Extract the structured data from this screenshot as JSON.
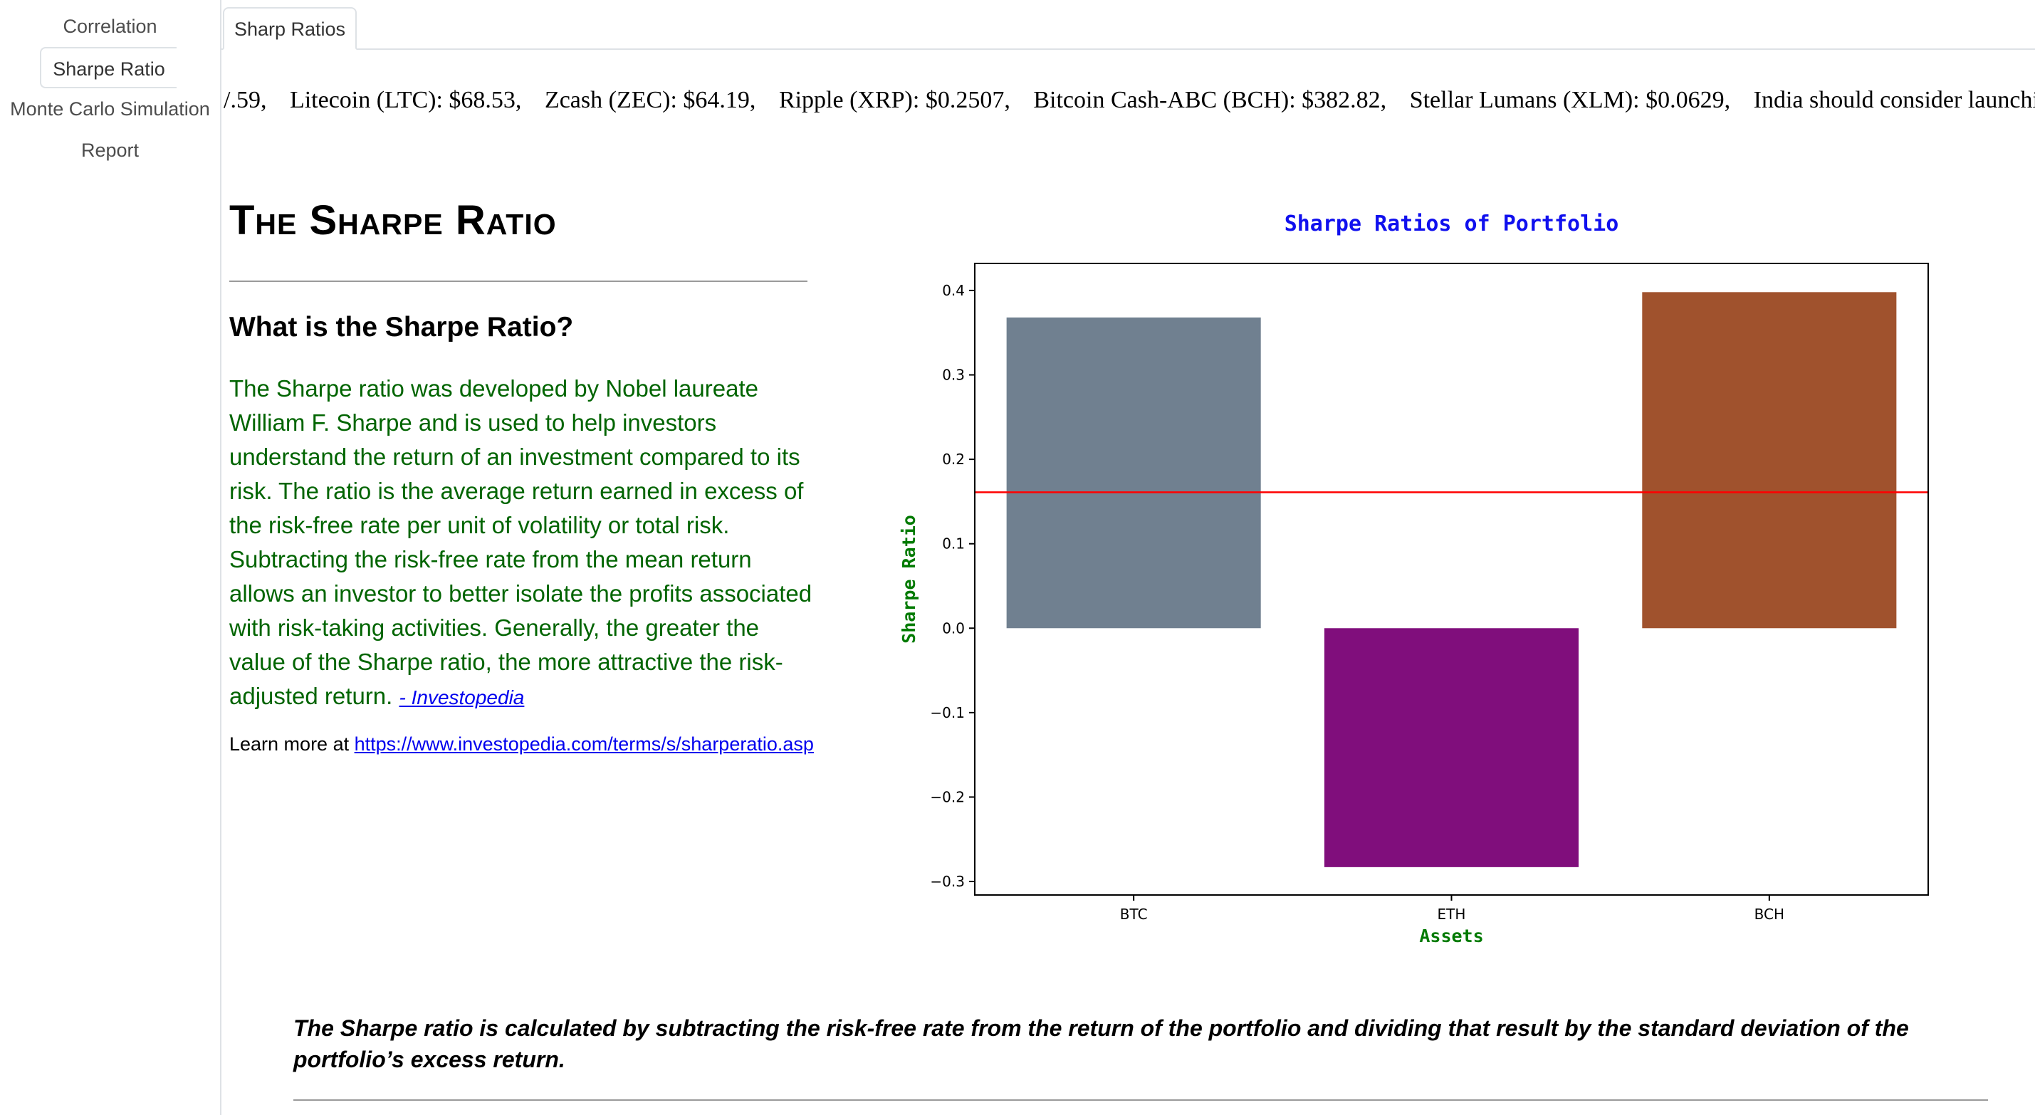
{
  "sidebar": {
    "items": [
      {
        "label": "Correlation",
        "active": false
      },
      {
        "label": "Sharpe Ratio",
        "active": true
      },
      {
        "label": "Monte Carlo Simulation",
        "active": false
      },
      {
        "label": "Report",
        "active": false
      }
    ]
  },
  "tabs": {
    "active_label": "Sharp Ratios"
  },
  "ticker": {
    "items": [
      "/.59,",
      "Litecoin (LTC): $68.53,",
      "Zcash (ZEC): $64.19,",
      "Ripple (XRP): $0.2507,",
      "Bitcoin Cash-ABC (BCH): $382.82,",
      "Stellar Lumans (XLM): $0.0629,",
      "India should consider launching its"
    ]
  },
  "content": {
    "title": "The Sharpe Ratio",
    "subheading": "What is the Sharpe Ratio?",
    "description": "The Sharpe ratio was developed by Nobel laureate William F. Sharpe and is used to help investors understand the return of an investment compared to its risk. The ratio is the average return earned in excess of the risk-free rate per unit of volatility or total risk. Subtracting the risk-free rate from the mean return allows an investor to better isolate the profits associated with risk-taking activities. Generally, the greater the value of the Sharpe ratio, the more attractive the risk-adjusted return.",
    "citation": "- Investopedia",
    "learn_more_prefix": "Learn more at",
    "learn_more_url": "https://www.investopedia.com/terms/s/sharperatio.asp",
    "formula_note": "The Sharpe ratio is calculated by subtracting the risk-free rate from the return of the portfolio and dividing that result by the standard deviation of the portfolio’s excess return."
  },
  "colors": {
    "description_text": "#006400",
    "link": "#0000ee",
    "chart_title": "#1010ee",
    "axis_label": "#007a00",
    "reference_line": "#ff0000"
  },
  "chart_data": {
    "type": "bar",
    "title": "Sharpe Ratios of Portfolio",
    "xlabel": "Assets",
    "ylabel": "Sharpe Ratio",
    "categories": [
      "BTC",
      "ETH",
      "BCH"
    ],
    "values": [
      0.368,
      -0.283,
      0.398
    ],
    "bar_colors": [
      "#708090",
      "#800e7c",
      "#a0522d"
    ],
    "reference_line": 0.161,
    "ylim": [
      -0.316,
      0.432
    ],
    "yticks": [
      -0.3,
      -0.2,
      -0.1,
      0.0,
      0.1,
      0.2,
      0.3,
      0.4
    ],
    "ytick_labels": [
      "−0.3",
      "−0.2",
      "−0.1",
      "0.0",
      "0.1",
      "0.2",
      "0.3",
      "0.4"
    ],
    "grid": false
  }
}
